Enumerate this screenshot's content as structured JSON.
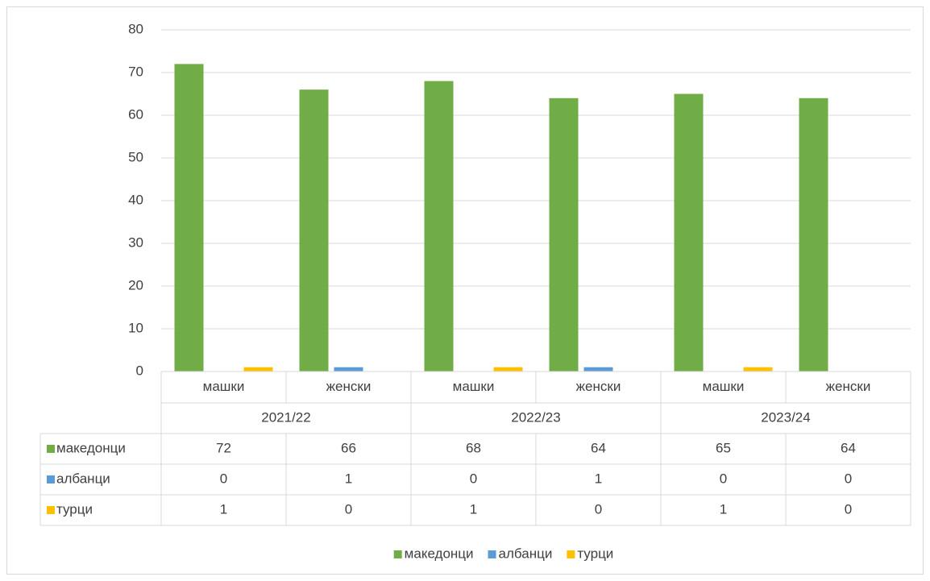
{
  "chart_data": {
    "type": "bar",
    "categories": [
      "машки",
      "женски",
      "машки",
      "женски",
      "машки",
      "женски"
    ],
    "category_groups": [
      "2021/22",
      "2022/23",
      "2023/24"
    ],
    "series": [
      {
        "name": "македонци",
        "color": "#70ad47",
        "values": [
          72,
          66,
          68,
          64,
          65,
          64
        ]
      },
      {
        "name": "албанци",
        "color": "#5b9bd5",
        "values": [
          0,
          1,
          0,
          1,
          0,
          0
        ]
      },
      {
        "name": "турци",
        "color": "#ffc000",
        "values": [
          1,
          0,
          1,
          0,
          1,
          0
        ]
      }
    ],
    "ylim": [
      0,
      80
    ],
    "yticks": [
      0,
      10,
      20,
      30,
      40,
      50,
      60,
      70,
      80
    ],
    "grid": true,
    "data_table": true,
    "legend": "bottom"
  }
}
